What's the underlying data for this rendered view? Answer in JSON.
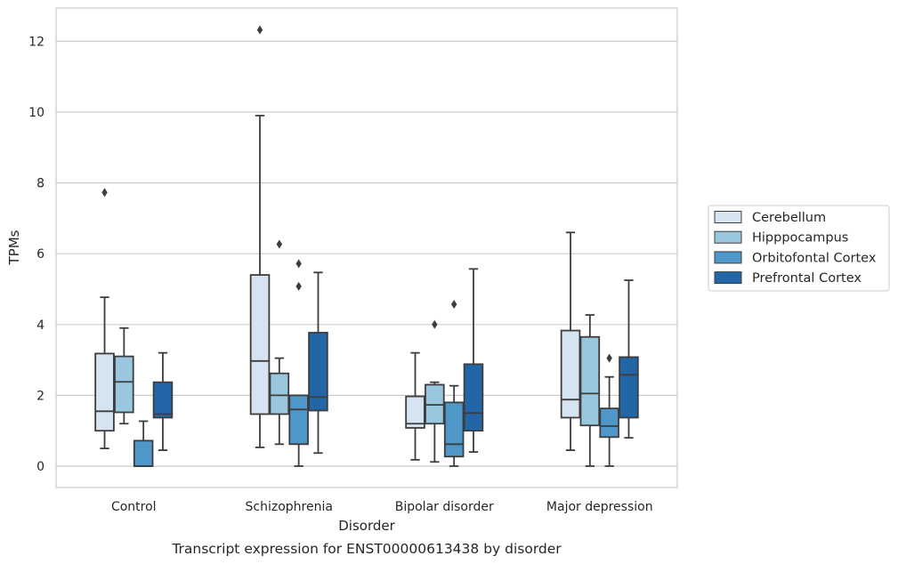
{
  "caption": "Transcript expression for ENST00000613438 by disorder",
  "chart_data": {
    "type": "boxplot",
    "title": "",
    "xlabel": "Disorder",
    "ylabel": "TPMs",
    "ylim": [
      -0.6,
      12.95
    ],
    "yticks": [
      0,
      2,
      4,
      6,
      8,
      10,
      12
    ],
    "grid": "horizontal",
    "legend_position": "right",
    "categories": [
      "Control",
      "Schizophrenia",
      "Bipolar disorder",
      "Major depression"
    ],
    "series": [
      {
        "name": "Cerebellum",
        "color": "#d6e4f1",
        "boxes": [
          {
            "whislo": 0.5,
            "q1": 1.0,
            "med": 1.55,
            "q3": 3.18,
            "whishi": 4.77,
            "fliers": [
              7.73
            ]
          },
          {
            "whislo": 0.53,
            "q1": 1.47,
            "med": 2.97,
            "q3": 5.4,
            "whishi": 9.9,
            "fliers": [
              12.32
            ]
          },
          {
            "whislo": 0.18,
            "q1": 1.08,
            "med": 1.2,
            "q3": 1.97,
            "whishi": 3.2,
            "fliers": []
          },
          {
            "whislo": 0.45,
            "q1": 1.37,
            "med": 1.88,
            "q3": 3.83,
            "whishi": 6.6,
            "fliers": []
          }
        ]
      },
      {
        "name": "Hipppocampus",
        "color": "#9ac7e0",
        "boxes": [
          {
            "whislo": 1.2,
            "q1": 1.52,
            "med": 2.38,
            "q3": 3.1,
            "whishi": 3.9,
            "fliers": []
          },
          {
            "whislo": 0.62,
            "q1": 1.47,
            "med": 2.0,
            "q3": 2.62,
            "whishi": 3.05,
            "fliers": [
              6.27
            ]
          },
          {
            "whislo": 0.12,
            "q1": 1.2,
            "med": 1.73,
            "q3": 2.3,
            "whishi": 2.37,
            "fliers": [
              4.0
            ]
          },
          {
            "whislo": 0.0,
            "q1": 1.15,
            "med": 2.05,
            "q3": 3.65,
            "whishi": 4.27,
            "fliers": []
          }
        ]
      },
      {
        "name": "Orbitofontal Cortex",
        "color": "#5097c9",
        "boxes": [
          {
            "whislo": 0.0,
            "q1": 0.0,
            "med": 0.0,
            "q3": 0.72,
            "whishi": 1.27,
            "fliers": []
          },
          {
            "whislo": 0.0,
            "q1": 0.62,
            "med": 1.6,
            "q3": 2.0,
            "whishi": 2.0,
            "fliers": [
              5.72,
              5.08
            ]
          },
          {
            "whislo": 0.0,
            "q1": 0.27,
            "med": 0.62,
            "q3": 1.8,
            "whishi": 2.27,
            "fliers": [
              4.57
            ]
          },
          {
            "whislo": 0.0,
            "q1": 0.82,
            "med": 1.13,
            "q3": 1.63,
            "whishi": 2.52,
            "fliers": [
              3.05
            ]
          }
        ]
      },
      {
        "name": "Prefrontal Cortex",
        "color": "#2266a7",
        "boxes": [
          {
            "whislo": 0.45,
            "q1": 1.37,
            "med": 1.47,
            "q3": 2.37,
            "whishi": 3.2,
            "fliers": []
          },
          {
            "whislo": 0.37,
            "q1": 1.57,
            "med": 1.95,
            "q3": 3.77,
            "whishi": 5.47,
            "fliers": []
          },
          {
            "whislo": 0.4,
            "q1": 1.0,
            "med": 1.5,
            "q3": 2.88,
            "whishi": 5.57,
            "fliers": []
          },
          {
            "whislo": 0.8,
            "q1": 1.37,
            "med": 2.58,
            "q3": 3.08,
            "whishi": 5.25,
            "fliers": []
          }
        ]
      }
    ]
  }
}
